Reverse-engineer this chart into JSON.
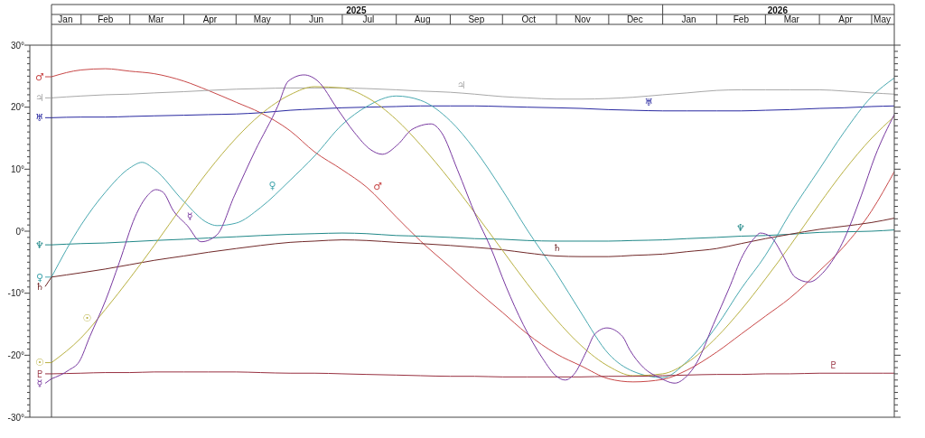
{
  "chart_data": {
    "type": "line",
    "x": [
      "2025-01-15",
      "2025-02-01",
      "2025-02-15",
      "2025-03-01",
      "2025-03-15",
      "2025-04-01",
      "2025-04-15",
      "2025-05-01",
      "2025-05-15",
      "2025-06-01",
      "2025-06-15",
      "2025-07-01",
      "2025-07-15",
      "2025-08-01",
      "2025-08-15",
      "2025-09-01",
      "2025-09-15",
      "2025-10-01",
      "2025-10-15",
      "2025-11-01",
      "2025-11-15",
      "2025-12-01",
      "2025-12-15",
      "2026-01-01",
      "2026-01-15",
      "2026-02-01",
      "2026-02-15",
      "2026-03-01",
      "2026-03-15",
      "2026-04-01",
      "2026-04-15",
      "2026-05-01",
      "2026-05-14"
    ],
    "series": [
      {
        "name": "♂",
        "color": "#c84848",
        "values": [
          24.9,
          26.0,
          26.2,
          25.8,
          25.4,
          24.2,
          22.7,
          20.8,
          19.1,
          16.2,
          12.8,
          9.9,
          7.1,
          2.3,
          -1.6,
          -5.8,
          -9.3,
          -13.1,
          -16.5,
          -19.8,
          -21.7,
          -23.8,
          -24.3,
          -23.9,
          -22.4,
          -19.5,
          -16.6,
          -13.7,
          -10.8,
          -6.4,
          -2.5,
          3.3,
          9.6
        ]
      },
      {
        "name": "♃",
        "color": "#a8a8a8",
        "values": [
          21.5,
          21.8,
          22.0,
          22.1,
          22.3,
          22.5,
          22.7,
          22.9,
          23.0,
          23.1,
          23.1,
          23.1,
          23.0,
          22.8,
          22.6,
          22.4,
          22.1,
          21.7,
          21.5,
          21.3,
          21.3,
          21.4,
          21.6,
          22.0,
          22.3,
          22.7,
          22.8,
          22.8,
          22.8,
          22.8,
          22.6,
          22.3,
          22.1
        ]
      },
      {
        "name": "♅",
        "color": "#2828a0",
        "values": [
          18.3,
          18.4,
          18.4,
          18.5,
          18.6,
          18.7,
          18.8,
          18.9,
          19.1,
          19.5,
          19.7,
          19.9,
          20.0,
          20.1,
          20.2,
          20.2,
          20.2,
          20.1,
          20.0,
          19.9,
          19.8,
          19.6,
          19.5,
          19.4,
          19.4,
          19.4,
          19.4,
          19.5,
          19.6,
          19.8,
          19.9,
          20.1,
          20.2
        ]
      },
      {
        "name": "♆",
        "color": "#208888",
        "values": [
          -2.2,
          -2.0,
          -1.9,
          -1.7,
          -1.5,
          -1.3,
          -1.1,
          -0.9,
          -0.7,
          -0.5,
          -0.4,
          -0.3,
          -0.4,
          -0.7,
          -0.8,
          -1.0,
          -1.2,
          -1.3,
          -1.5,
          -1.6,
          -1.6,
          -1.6,
          -1.5,
          -1.4,
          -1.2,
          -1.0,
          -0.8,
          -0.7,
          -0.5,
          -0.2,
          -0.1,
          0.0,
          0.2
        ]
      },
      {
        "name": "♀",
        "color": "#48a8b0",
        "x": [
          "2025-01-15",
          "2025-02-01",
          "2025-02-15",
          "2025-03-01",
          "2025-03-08",
          "2025-03-15",
          "2025-04-01",
          "2025-04-15",
          "2025-04-20",
          "2025-05-01",
          "2025-05-15",
          "2025-06-01",
          "2025-06-15",
          "2025-07-01",
          "2025-07-15",
          "2025-08-01",
          "2025-08-15",
          "2025-09-01",
          "2025-09-15",
          "2025-10-01",
          "2025-10-15",
          "2025-11-01",
          "2025-11-15",
          "2025-12-01",
          "2025-12-15",
          "2026-01-01",
          "2026-01-15",
          "2026-02-01",
          "2026-02-15",
          "2026-03-01",
          "2026-03-15",
          "2026-04-01",
          "2026-04-15",
          "2026-05-01",
          "2026-05-14"
        ],
        "values": [
          -7.4,
          1.0,
          6.3,
          10.2,
          11.1,
          10.0,
          4.8,
          1.3,
          0.9,
          1.3,
          3.8,
          8.2,
          12.1,
          17.2,
          20.1,
          21.8,
          21.1,
          17.8,
          13.2,
          6.6,
          0.3,
          -6.8,
          -13.1,
          -19.8,
          -22.6,
          -23.6,
          -21.0,
          -15.3,
          -9.3,
          -3.9,
          2.8,
          10.0,
          15.9,
          21.7,
          24.7
        ]
      },
      {
        "name": "♄",
        "color": "#702828",
        "values": [
          -7.4,
          -6.7,
          -6.1,
          -5.4,
          -4.7,
          -4.0,
          -3.4,
          -2.8,
          -2.3,
          -1.8,
          -1.6,
          -1.4,
          -1.5,
          -1.8,
          -2.0,
          -2.3,
          -2.6,
          -3.0,
          -3.5,
          -4.0,
          -4.1,
          -4.1,
          -3.9,
          -3.7,
          -3.3,
          -2.8,
          -2.0,
          -1.2,
          -0.5,
          0.3,
          0.8,
          1.4,
          2.1
        ]
      },
      {
        "name": "☉",
        "color": "#b8b040",
        "values": [
          -21.2,
          -17.2,
          -12.6,
          -7.6,
          -2.3,
          4.4,
          9.7,
          15.0,
          18.8,
          22.0,
          23.3,
          23.1,
          21.6,
          18.0,
          13.9,
          8.2,
          3.0,
          -3.1,
          -8.4,
          -14.3,
          -18.4,
          -21.8,
          -23.3,
          -23.0,
          -21.2,
          -17.1,
          -12.7,
          -7.7,
          -2.4,
          4.4,
          9.7,
          15.0,
          18.5
        ]
      },
      {
        "name": "♇",
        "color": "#983040",
        "values": [
          -23.0,
          -22.9,
          -22.8,
          -22.8,
          -22.7,
          -22.7,
          -22.7,
          -22.7,
          -22.8,
          -22.9,
          -22.9,
          -23.0,
          -23.1,
          -23.2,
          -23.3,
          -23.4,
          -23.4,
          -23.5,
          -23.5,
          -23.5,
          -23.5,
          -23.4,
          -23.4,
          -23.3,
          -23.2,
          -23.1,
          -23.1,
          -23.0,
          -23.0,
          -22.9,
          -22.9,
          -22.9,
          -22.9
        ]
      },
      {
        "name": "☿",
        "color": "#7838a0",
        "x": [
          "2025-01-15",
          "2025-01-25",
          "2025-01-31",
          "2025-02-06",
          "2025-02-15",
          "2025-02-23",
          "2025-03-04",
          "2025-03-11",
          "2025-03-16",
          "2025-03-20",
          "2025-03-26",
          "2025-04-03",
          "2025-04-11",
          "2025-04-20",
          "2025-04-30",
          "2025-05-12",
          "2025-05-25",
          "2025-05-31",
          "2025-06-09",
          "2025-06-17",
          "2025-06-28",
          "2025-07-08",
          "2025-07-17",
          "2025-07-24",
          "2025-08-02",
          "2025-08-10",
          "2025-08-21",
          "2025-08-27",
          "2025-09-05",
          "2025-09-16",
          "2025-09-24",
          "2025-10-03",
          "2025-10-13",
          "2025-10-24",
          "2025-11-01",
          "2025-11-06",
          "2025-11-11",
          "2025-11-18",
          "2025-11-23",
          "2025-11-30",
          "2025-12-09",
          "2025-12-13",
          "2025-12-21",
          "2025-12-30",
          "2026-01-08",
          "2026-01-14",
          "2026-01-21",
          "2026-01-30",
          "2026-02-08",
          "2026-02-16",
          "2026-02-23",
          "2026-02-26",
          "2026-03-04",
          "2026-03-11",
          "2026-03-18",
          "2026-03-26",
          "2026-04-04",
          "2026-04-14",
          "2026-04-25",
          "2026-05-03",
          "2026-05-14"
        ],
        "values": [
          -23.8,
          -22.4,
          -21.0,
          -17.0,
          -11.2,
          -5.0,
          2.3,
          5.7,
          6.7,
          6.3,
          3.3,
          0.9,
          -1.7,
          -0.6,
          5.7,
          13.0,
          20.2,
          24.2,
          25.2,
          24.2,
          19.8,
          15.9,
          13.2,
          12.4,
          14.0,
          16.4,
          17.3,
          15.9,
          10.0,
          2.3,
          -2.5,
          -8.9,
          -15.1,
          -20.5,
          -23.4,
          -24.0,
          -23.1,
          -19.5,
          -16.6,
          -15.6,
          -17.0,
          -19.1,
          -22.0,
          -23.6,
          -24.5,
          -23.6,
          -21.0,
          -15.1,
          -9.3,
          -3.9,
          -1.0,
          -0.3,
          -0.9,
          -3.9,
          -7.4,
          -8.2,
          -6.4,
          -2.0,
          5.7,
          12.1,
          18.8
        ]
      }
    ],
    "legend": "left",
    "xlim": [
      "2025-01-15",
      "2026-05-14"
    ],
    "xticks": [
      {
        "value": "2025-01-23",
        "label": "Jan"
      },
      {
        "value": "2025-02-15",
        "label": "Feb"
      },
      {
        "value": "2025-03-16",
        "label": "Mar"
      },
      {
        "value": "2025-04-16",
        "label": "Apr"
      },
      {
        "value": "2025-05-16",
        "label": "May"
      },
      {
        "value": "2025-06-16",
        "label": "Jun"
      },
      {
        "value": "2025-07-16",
        "label": "Jul"
      },
      {
        "value": "2025-08-16",
        "label": "Aug"
      },
      {
        "value": "2025-09-16",
        "label": "Sep"
      },
      {
        "value": "2025-10-16",
        "label": "Oct"
      },
      {
        "value": "2025-11-16",
        "label": "Nov"
      },
      {
        "value": "2025-12-16",
        "label": "Dec"
      },
      {
        "value": "2026-01-16",
        "label": "Jan"
      },
      {
        "value": "2026-02-15",
        "label": "Feb"
      },
      {
        "value": "2026-03-16",
        "label": "Mar"
      },
      {
        "value": "2026-04-16",
        "label": "Apr"
      },
      {
        "value": "2026-05-07",
        "label": "May"
      }
    ],
    "x2lim": [
      "2025-01-15",
      "2026-05-14"
    ],
    "x2ticks": [
      {
        "value": "2025-07-09",
        "label": "2025"
      },
      {
        "value": "2026-03-08",
        "label": "2026"
      }
    ],
    "ylim": [
      -30,
      30
    ],
    "yticks": [
      {
        "value": -30,
        "label": "-30°"
      },
      {
        "value": -29,
        "label": null
      },
      {
        "value": -28,
        "label": null
      },
      {
        "value": -27,
        "label": null
      },
      {
        "value": -26,
        "label": null
      },
      {
        "value": -25,
        "label": null
      },
      {
        "value": -24,
        "label": null
      },
      {
        "value": -23,
        "label": null
      },
      {
        "value": -22,
        "label": null
      },
      {
        "value": -21,
        "label": null
      },
      {
        "value": -20,
        "label": "-20°"
      },
      {
        "value": -19,
        "label": null
      },
      {
        "value": -18,
        "label": null
      },
      {
        "value": -17,
        "label": null
      },
      {
        "value": -16,
        "label": null
      },
      {
        "value": -15,
        "label": null
      },
      {
        "value": -14,
        "label": null
      },
      {
        "value": -13,
        "label": null
      },
      {
        "value": -12,
        "label": null
      },
      {
        "value": -11,
        "label": null
      },
      {
        "value": -10,
        "label": "-10°"
      },
      {
        "value": -9,
        "label": null
      },
      {
        "value": -8,
        "label": null
      },
      {
        "value": -7,
        "label": null
      },
      {
        "value": -6,
        "label": null
      },
      {
        "value": -5,
        "label": null
      },
      {
        "value": -4,
        "label": null
      },
      {
        "value": -3,
        "label": null
      },
      {
        "value": -2,
        "label": null
      },
      {
        "value": -1,
        "label": null
      },
      {
        "value": 0,
        "label": "0°"
      },
      {
        "value": 1,
        "label": null
      },
      {
        "value": 2,
        "label": null
      },
      {
        "value": 3,
        "label": null
      },
      {
        "value": 4,
        "label": null
      },
      {
        "value": 5,
        "label": null
      },
      {
        "value": 6,
        "label": null
      },
      {
        "value": 7,
        "label": null
      },
      {
        "value": 8,
        "label": null
      },
      {
        "value": 9,
        "label": null
      },
      {
        "value": 10,
        "label": "10°"
      },
      {
        "value": 11,
        "label": null
      },
      {
        "value": 12,
        "label": null
      },
      {
        "value": 13,
        "label": null
      },
      {
        "value": 14,
        "label": null
      },
      {
        "value": 15,
        "label": null
      },
      {
        "value": 16,
        "label": null
      },
      {
        "value": 17,
        "label": null
      },
      {
        "value": 18,
        "label": null
      },
      {
        "value": 19,
        "label": null
      },
      {
        "value": 20,
        "label": "20°"
      },
      {
        "value": 21,
        "label": null
      },
      {
        "value": 22,
        "label": null
      },
      {
        "value": 23,
        "label": null
      },
      {
        "value": 24,
        "label": null
      },
      {
        "value": 25,
        "label": null
      },
      {
        "value": 26,
        "label": null
      },
      {
        "value": 27,
        "label": null
      },
      {
        "value": 28,
        "label": null
      },
      {
        "value": 29,
        "label": null
      },
      {
        "value": 30,
        "label": "30°"
      }
    ],
    "annotations": [
      {
        "text": "♃",
        "x": "2025-09-07",
        "y": 22.3
      },
      {
        "text": "♅",
        "x": "2025-12-24",
        "y": 19.5
      },
      {
        "text": "♀",
        "x": "2025-05-25",
        "y": 6.4
      },
      {
        "text": "♂",
        "x": "2025-07-18",
        "y": 6.3
      },
      {
        "text": "☿",
        "x": "2025-04-01",
        "y": 1.5
      },
      {
        "text": "♆",
        "x": "2026-02-15",
        "y": -0.8
      },
      {
        "text": "♄",
        "x": "2025-11-01",
        "y": -4.0
      },
      {
        "text": "☉",
        "x": "2025-02-08",
        "y": -14.9
      },
      {
        "text": "♇",
        "x": "2026-04-09",
        "y": -22.9
      }
    ]
  }
}
